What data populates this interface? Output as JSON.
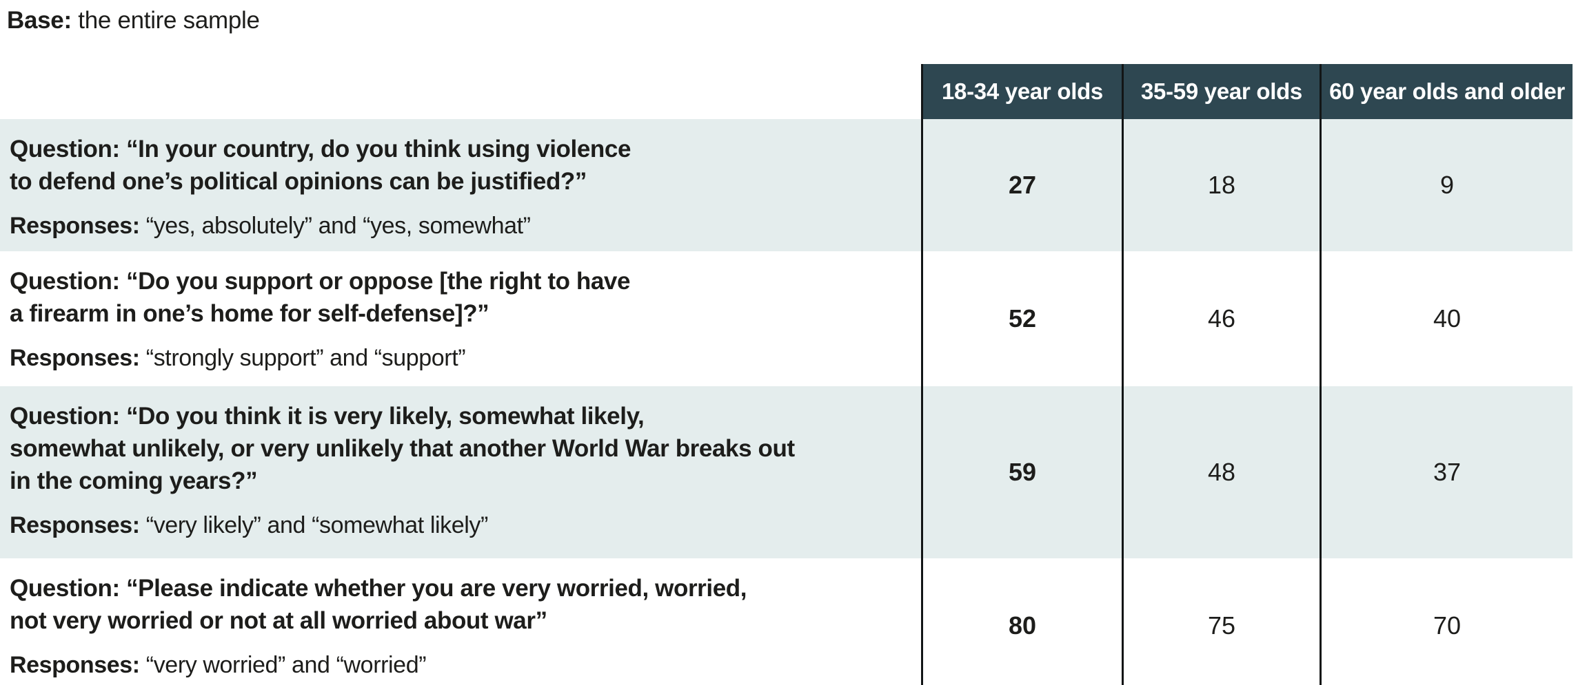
{
  "base": {
    "label": "Base:",
    "text": "the entire sample"
  },
  "chart_data": {
    "type": "table",
    "base": "the entire sample",
    "columns": [
      "18-34 year olds",
      "35-59 year olds",
      "60 year olds and older"
    ],
    "rows": [
      {
        "question_label": "Question:",
        "question": "“In your country, do you think using violence\nto defend one’s political opinions can be justified?”",
        "responses_label": "Responses:",
        "responses": "“yes, absolutely” and “yes, somewhat”",
        "values": [
          27,
          18,
          9
        ]
      },
      {
        "question_label": "Question:",
        "question": "“Do you support or oppose [the right to have\na firearm in one’s home for self-defense]?”",
        "responses_label": "Responses:",
        "responses": "“strongly support” and “support”",
        "values": [
          52,
          46,
          40
        ]
      },
      {
        "question_label": "Question:",
        "question": "“Do you think it is very likely, somewhat likely,\nsomewhat unlikely, or very unlikely that another World War breaks out\nin the coming years?”",
        "responses_label": "Responses:",
        "responses": "“very likely” and “somewhat likely”",
        "values": [
          59,
          48,
          37
        ]
      },
      {
        "question_label": "Question:",
        "question": "“Please indicate whether you are very worried, worried,\nnot very worried or not at all worried about war”",
        "responses_label": "Responses:",
        "responses": "“very worried” and “worried”",
        "values": [
          80,
          75,
          70
        ]
      }
    ]
  },
  "colors": {
    "header_bg": "#2e4751",
    "header_text": "#ffffff",
    "row_alt": "#e4eded",
    "text": "#1d1d1b",
    "border": "#121516",
    "page_bg": "#ffffff"
  }
}
